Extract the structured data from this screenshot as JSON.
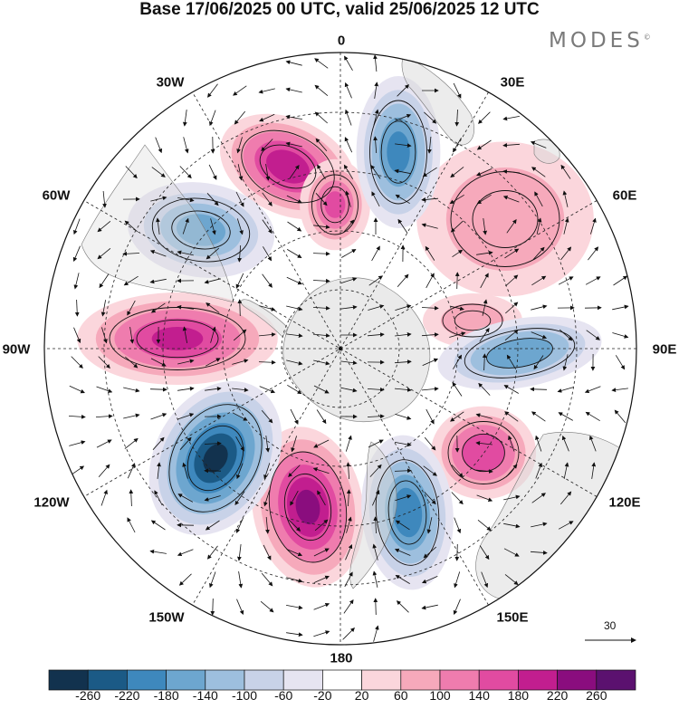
{
  "title": "Base 17/06/2025 00 UTC, valid 25/06/2025 12 UTC",
  "brand": "MODES",
  "brand_mark": "©",
  "longitude_labels": {
    "n0": "0",
    "e30": "30E",
    "e60": "60E",
    "e90": "90E",
    "e120": "120E",
    "e150": "150E",
    "s180": "180",
    "w150": "150W",
    "w120": "120W",
    "w90": "90W",
    "w60": "60W",
    "w30": "30W"
  },
  "reference_vector": {
    "value": "30"
  },
  "colorbar": {
    "colors": [
      "#12324e",
      "#1b5a86",
      "#3e88bd",
      "#6da6cf",
      "#9dbfde",
      "#c8d2e8",
      "#e6e4f1",
      "#ffffff",
      "#fbd6dc",
      "#f6a9bb",
      "#ef7cae",
      "#e14ba1",
      "#c21e8f",
      "#8a0d7e",
      "#5b116f"
    ],
    "levels": [
      "-260",
      "-220",
      "-180",
      "-140",
      "-100",
      "-60",
      "-20",
      "20",
      "60",
      "100",
      "140",
      "180",
      "220",
      "260"
    ]
  },
  "anomaly_centres": [
    {
      "polarity": "positive",
      "intensity": 205
    },
    {
      "polarity": "positive",
      "intensity": 140
    },
    {
      "polarity": "positive",
      "intensity": 185
    },
    {
      "polarity": "positive",
      "intensity": 225
    },
    {
      "polarity": "positive",
      "intensity": 170
    },
    {
      "polarity": "positive",
      "intensity": 90
    },
    {
      "polarity": "positive",
      "intensity": 80
    },
    {
      "polarity": "negative",
      "intensity": 190
    },
    {
      "polarity": "negative",
      "intensity": 150
    },
    {
      "polarity": "negative",
      "intensity": 170
    },
    {
      "polarity": "negative",
      "intensity": 265
    },
    {
      "polarity": "negative",
      "intensity": 205
    }
  ]
}
